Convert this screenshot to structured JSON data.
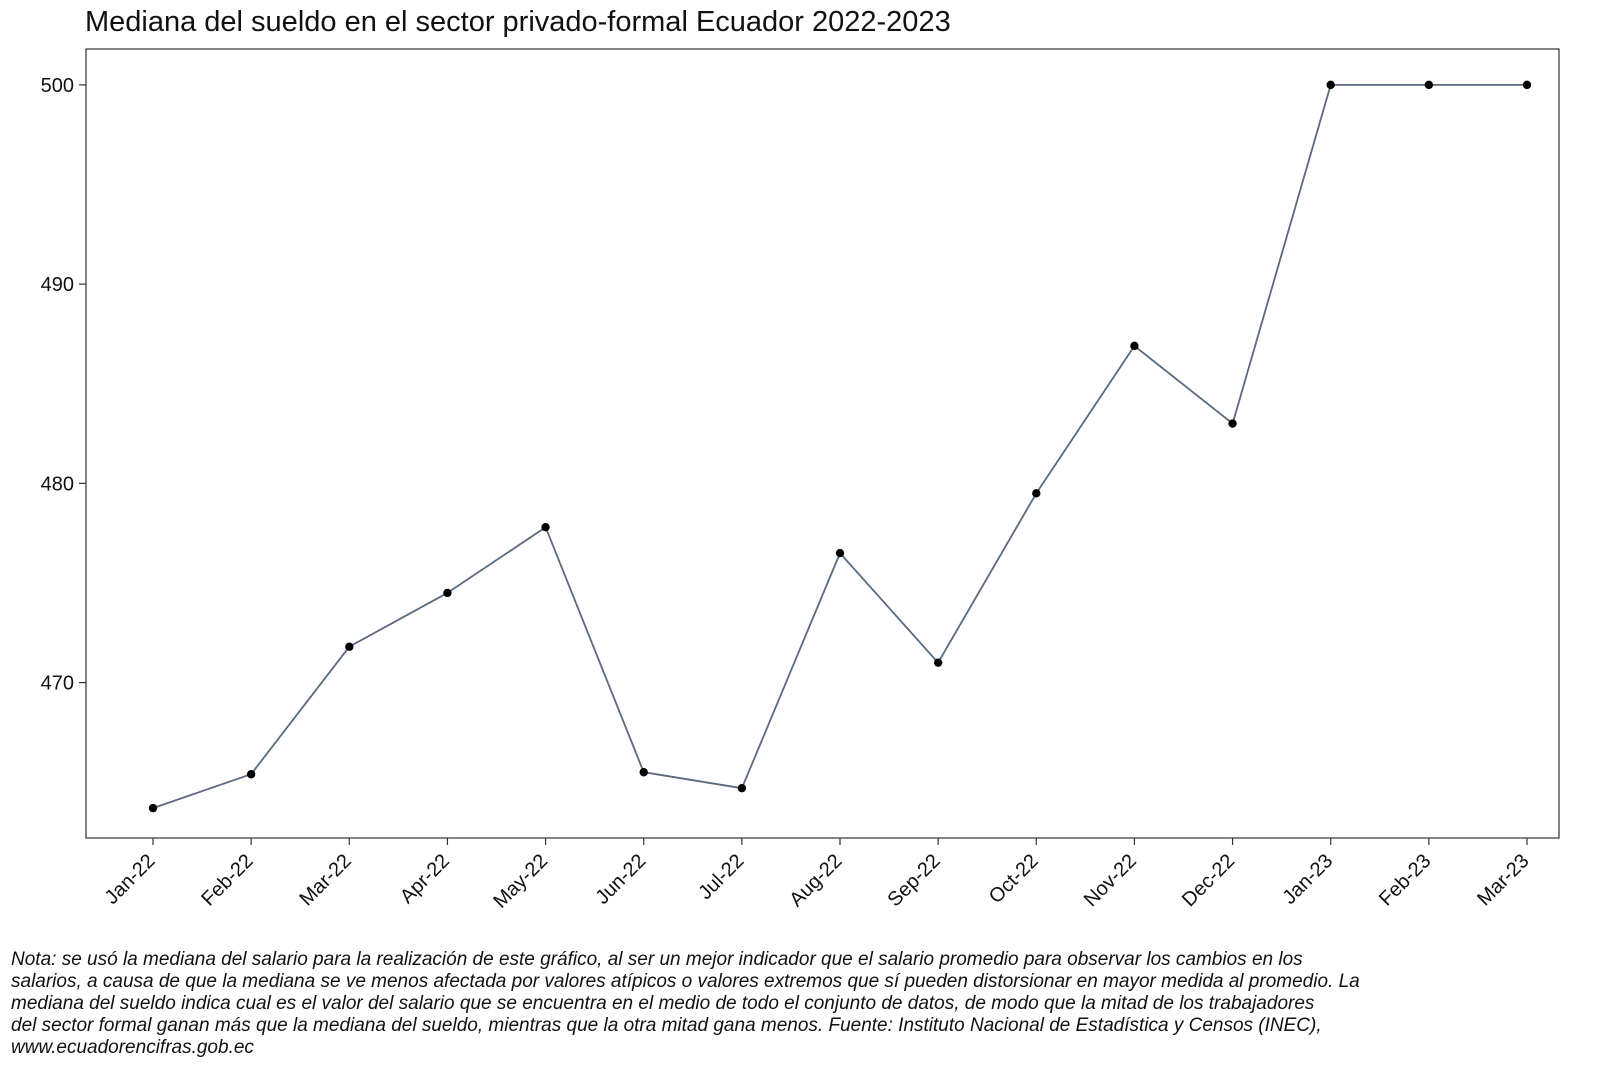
{
  "chart_data": {
    "type": "line",
    "title": "Mediana del sueldo en el sector privado-formal Ecuador 2022-2023",
    "xlabel": "",
    "ylabel": "",
    "categories": [
      "Jan-22",
      "Feb-22",
      "Mar-22",
      "Apr-22",
      "May-22",
      "Jun-22",
      "Jul-22",
      "Aug-22",
      "Sep-22",
      "Oct-22",
      "Nov-22",
      "Dec-22",
      "Jan-23",
      "Feb-23",
      "Mar-23"
    ],
    "series": [
      {
        "values": [
          463.7,
          465.4,
          471.8,
          474.5,
          477.8,
          465.5,
          464.7,
          476.5,
          471.0,
          479.5,
          486.9,
          483.0,
          500.0,
          500.0,
          500.0
        ]
      }
    ],
    "yticks": [
      470,
      480,
      490,
      500
    ],
    "ylim": [
      462.2,
      501.8
    ],
    "grid": false,
    "legend": "none",
    "line_color": "#5a6a80",
    "marker_color": "#000000"
  },
  "note": {
    "lines": [
      "Nota: se usó la mediana del salario para la realización de este gráfico, al ser un mejor indicador que el salario promedio para observar los cambios en los",
      "salarios, a causa de que la mediana se ve menos afectada por valores atípicos o valores extremos que sí pueden distorsionar en mayor medida al promedio. La",
      "mediana del sueldo indica cual es el valor del salario que se encuentra en el medio de todo el conjunto de datos, de modo que la mitad de los trabajadores",
      "del sector formal ganan más que la mediana del sueldo, mientras que la otra mitad gana menos. Fuente: Instituto Nacional de Estadística y Censos (INEC),",
      "www.ecuadorencifras.gob.ec"
    ]
  }
}
